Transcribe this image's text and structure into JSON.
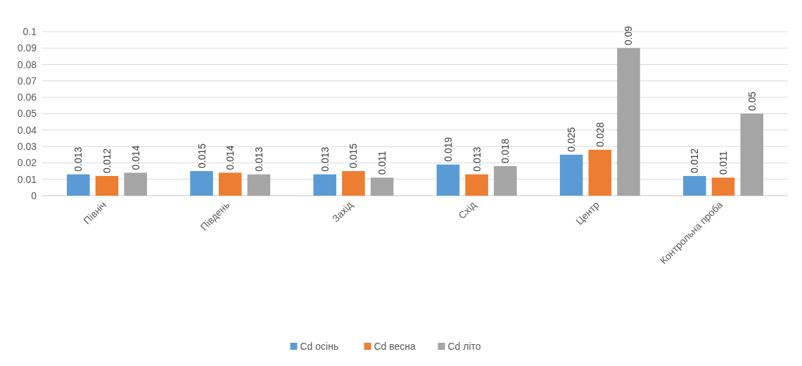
{
  "chart_data": {
    "type": "bar",
    "categories": [
      "Північ",
      "Південь",
      "Захід",
      "Схід",
      "Центр",
      "Контрольна проба"
    ],
    "series": [
      {
        "name": "Cd осінь",
        "color": "#5b9bd5",
        "values": [
          0.013,
          0.015,
          0.013,
          0.019,
          0.025,
          0.012
        ]
      },
      {
        "name": "Cd весна",
        "color": "#ed7d31",
        "values": [
          0.012,
          0.014,
          0.015,
          0.013,
          0.028,
          0.011
        ]
      },
      {
        "name": "Cd літо",
        "color": "#a5a5a5",
        "values": [
          0.014,
          0.013,
          0.011,
          0.018,
          0.09,
          0.05
        ]
      }
    ],
    "ylim": [
      0,
      0.1
    ],
    "yticks": [
      0,
      0.01,
      0.02,
      0.03,
      0.04,
      0.05,
      0.06,
      0.07,
      0.08,
      0.09,
      0.1
    ],
    "grid": "y",
    "legend": "bottom",
    "data_labels": true
  }
}
